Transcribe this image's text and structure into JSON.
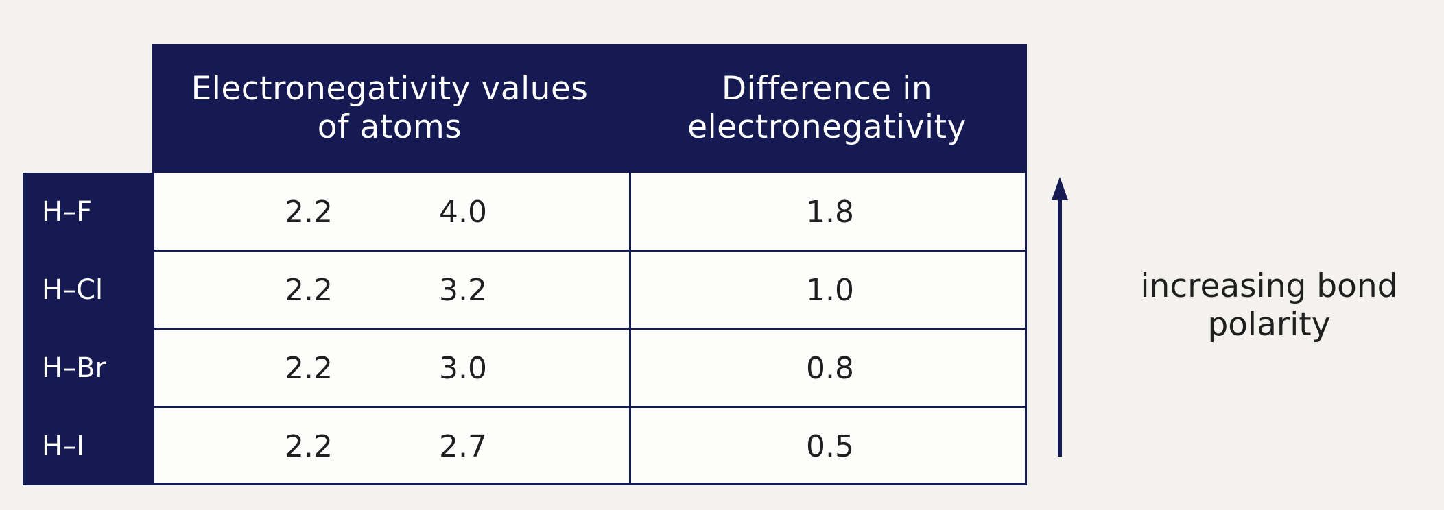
{
  "table": {
    "headers": {
      "values": "Electronegativity values\nof atoms",
      "difference": "Difference in\nelectronegativity"
    },
    "rows": [
      {
        "label": "H–F",
        "h": "2.2",
        "x": "4.0",
        "diff": "1.8"
      },
      {
        "label": "H–Cl",
        "h": "2.2",
        "x": "3.2",
        "diff": "1.0"
      },
      {
        "label": "H–Br",
        "h": "2.2",
        "x": "3.0",
        "diff": "0.8"
      },
      {
        "label": "H–I",
        "h": "2.2",
        "x": "2.7",
        "diff": "0.5"
      }
    ]
  },
  "arrow": {
    "label": "increasing bond\npolarity",
    "direction": "up",
    "color": "#161a52"
  },
  "colors": {
    "header_bg": "#161a52",
    "header_text": "#ffffff",
    "body_bg": "#fdfdfc"
  }
}
